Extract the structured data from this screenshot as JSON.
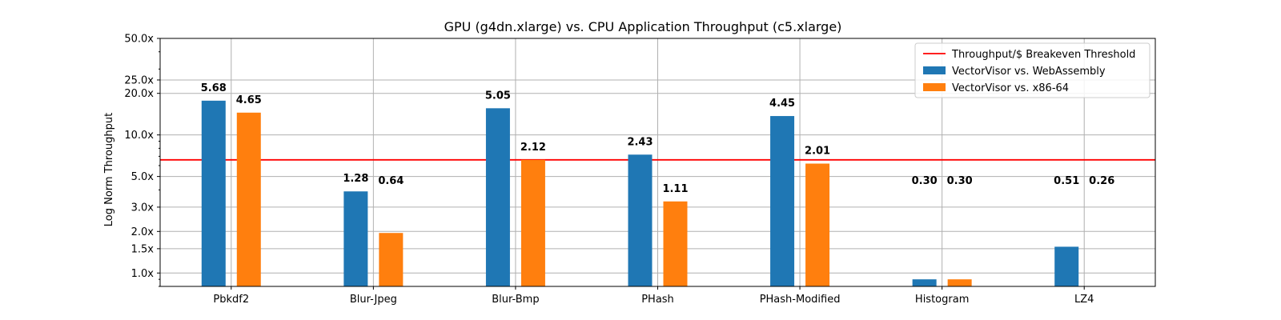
{
  "chart_data": {
    "type": "bar",
    "title": "GPU (g4dn.xlarge) vs. CPU Application Throughput (c5.xlarge)",
    "xlabel": "",
    "ylabel": "Log Norm Throughput",
    "yscale": "log",
    "ylim": [
      0.8,
      50
    ],
    "yticks": [
      1.0,
      1.5,
      2.0,
      3.0,
      5.0,
      10.0,
      20.0,
      25.0,
      50.0
    ],
    "ytick_labels": [
      "1.0x",
      "1.5x",
      "2.0x",
      "3.0x",
      "5.0x",
      "10.0x",
      "20.0x",
      "25.0x",
      "50.0x"
    ],
    "grid": true,
    "legend_position": "top-right",
    "categories": [
      "Pbkdf2",
      "Blur-Jpeg",
      "Blur-Bmp",
      "PHash",
      "PHash-Modified",
      "Histogram",
      "LZ4"
    ],
    "series": [
      {
        "name": "VectorVisor vs. WebAssembly",
        "color": "#1f77b4",
        "values": [
          17.7,
          3.9,
          15.6,
          7.2,
          13.7,
          0.9,
          1.55
        ],
        "labels": [
          "5.68",
          "1.28",
          "5.05",
          "2.43",
          "4.45",
          "0.30",
          "0.51"
        ]
      },
      {
        "name": "VectorVisor vs. x86-64",
        "color": "#ff7f0e",
        "values": [
          14.5,
          1.95,
          6.6,
          3.3,
          6.2,
          0.9,
          0.78
        ],
        "labels": [
          "4.65",
          "0.64",
          "2.12",
          "1.11",
          "2.01",
          "0.30",
          "0.26"
        ]
      }
    ],
    "threshold": {
      "name": "Throughput/$ Breakeven Threshold",
      "value": 6.6,
      "color": "#ff0000"
    }
  }
}
